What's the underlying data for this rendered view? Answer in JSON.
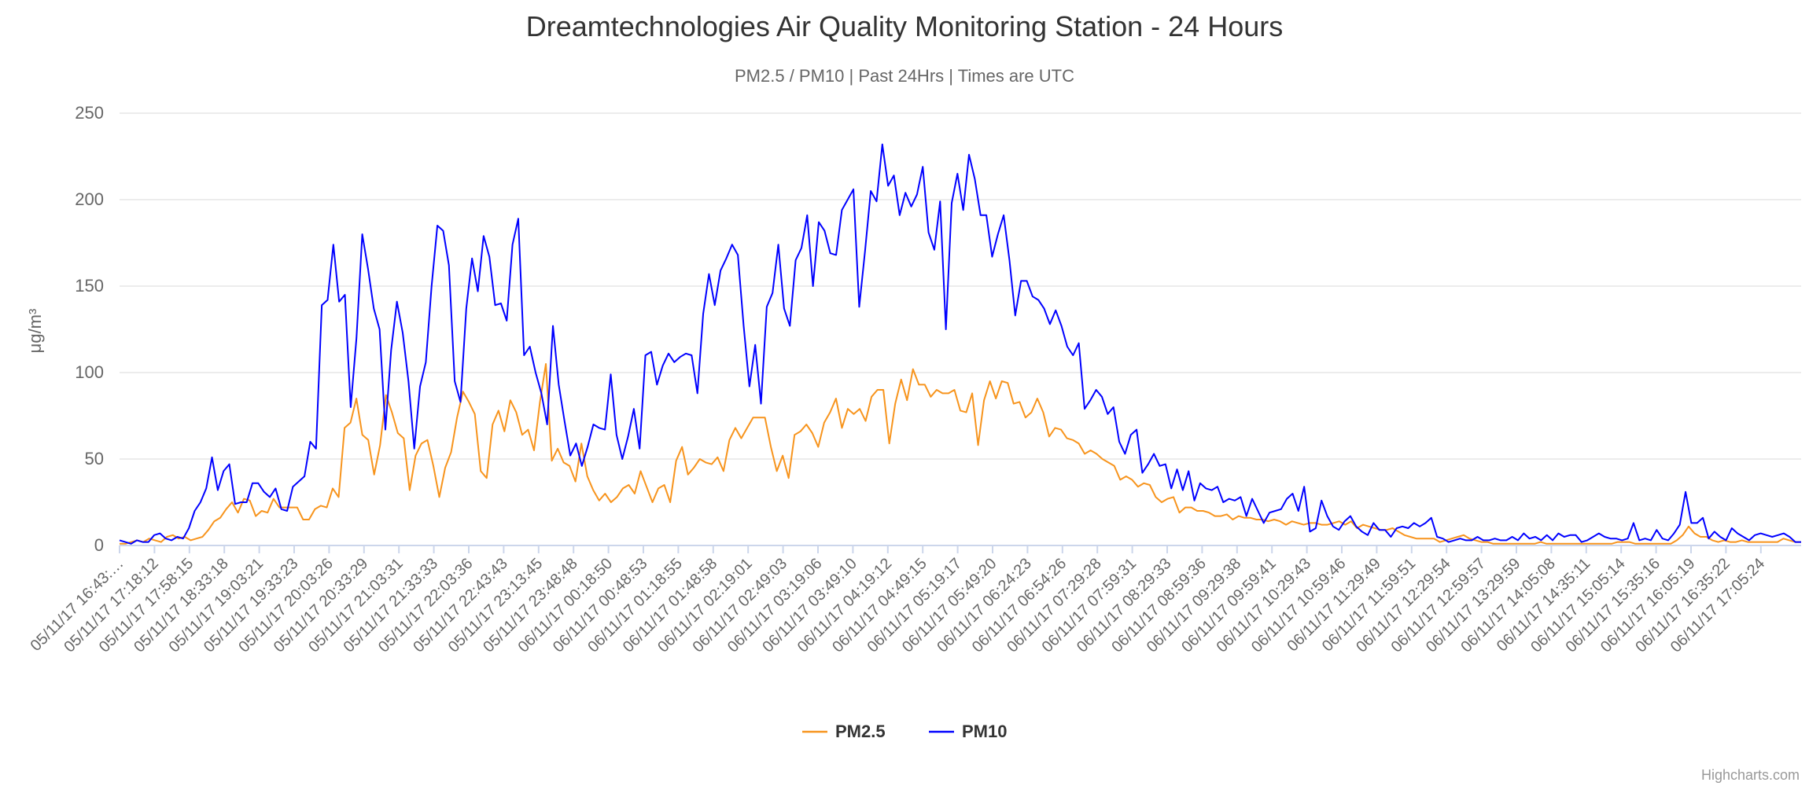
{
  "chart_data": {
    "type": "line",
    "title": "Dreamtechnologies Air Quality Monitoring Station - 24 Hours",
    "subtitle": "PM2.5 / PM10 | Past 24Hrs | Times are UTC",
    "ylabel": "μg/m³",
    "xlabel": "",
    "ylim": [
      0,
      250
    ],
    "yticks": [
      0,
      50,
      100,
      150,
      200,
      250
    ],
    "xtick_labels": [
      "05/11/17 16:43:…",
      "05/11/17 17:18:12",
      "05/11/17 17:58:15",
      "05/11/17 18:33:18",
      "05/11/17 19:03:21",
      "05/11/17 19:33:23",
      "05/11/17 20:03:26",
      "05/11/17 20:33:29",
      "05/11/17 21:03:31",
      "05/11/17 21:33:33",
      "05/11/17 22:03:36",
      "05/11/17 22:43:43",
      "05/11/17 23:13:45",
      "05/11/17 23:48:48",
      "06/11/17 00:18:50",
      "06/11/17 00:48:53",
      "06/11/17 01:18:55",
      "06/11/17 01:48:58",
      "06/11/17 02:19:01",
      "06/11/17 02:49:03",
      "06/11/17 03:19:06",
      "06/11/17 03:49:10",
      "06/11/17 04:19:12",
      "06/11/17 04:49:15",
      "06/11/17 05:19:17",
      "06/11/17 05:49:20",
      "06/11/17 06:24:23",
      "06/11/17 06:54:26",
      "06/11/17 07:29:28",
      "06/11/17 07:59:31",
      "06/11/17 08:29:33",
      "06/11/17 08:59:36",
      "06/11/17 09:29:38",
      "06/11/17 09:59:41",
      "06/11/17 10:29:43",
      "06/11/17 10:59:46",
      "06/11/17 11:29:49",
      "06/11/17 11:59:51",
      "06/11/17 12:29:54",
      "06/11/17 12:59:57",
      "06/11/17 13:29:59",
      "06/11/17 14:05:08",
      "06/11/17 14:35:11",
      "06/11/17 15:05:14",
      "06/11/17 15:35:16",
      "06/11/17 16:05:19",
      "06/11/17 16:35:22",
      "06/11/17 17:05:24"
    ],
    "legend_position": "bottom-center",
    "grid": true,
    "series": [
      {
        "name": "PM2.5",
        "color": "#f7941d",
        "values": [
          1,
          1,
          2,
          3,
          2,
          4,
          3,
          2,
          5,
          6,
          4,
          5,
          3,
          4,
          5,
          9,
          14,
          16,
          21,
          25,
          19,
          27,
          26,
          17,
          20,
          19,
          27,
          22,
          22,
          22,
          22,
          15,
          15,
          21,
          23,
          22,
          33,
          28,
          68,
          71,
          85,
          64,
          61,
          41,
          58,
          87,
          77,
          65,
          62,
          32,
          52,
          59,
          61,
          46,
          28,
          45,
          54,
          74,
          89,
          83,
          76,
          43,
          39,
          70,
          78,
          66,
          84,
          77,
          64,
          67,
          55,
          83,
          105,
          49,
          56,
          48,
          46,
          37,
          59,
          40,
          32,
          26,
          30,
          25,
          28,
          33,
          35,
          30,
          43,
          34,
          25,
          33,
          35,
          25,
          49,
          57,
          41,
          45,
          50,
          48,
          47,
          51,
          43,
          61,
          68,
          62,
          68,
          74,
          74,
          74,
          57,
          43,
          52,
          39,
          64,
          66,
          70,
          65,
          57,
          71,
          77,
          85,
          68,
          79,
          76,
          79,
          72,
          86,
          90,
          90,
          59,
          82,
          96,
          84,
          102,
          93,
          93,
          86,
          90,
          88,
          88,
          90,
          78,
          77,
          88,
          58,
          84,
          95,
          85,
          95,
          94,
          82,
          83,
          74,
          77,
          85,
          77,
          63,
          68,
          67,
          62,
          61,
          59,
          53,
          55,
          53,
          50,
          48,
          46,
          38,
          40,
          38,
          34,
          36,
          35,
          28,
          25,
          27,
          28,
          19,
          22,
          22,
          20,
          20,
          19,
          17,
          17,
          18,
          15,
          17,
          16,
          16,
          15,
          15,
          14,
          15,
          14,
          12,
          14,
          13,
          12,
          13,
          13,
          12,
          12,
          13,
          14,
          12,
          14,
          10,
          12,
          11,
          10,
          9,
          9,
          10,
          8,
          6,
          5,
          4,
          4,
          4,
          4,
          2,
          3,
          4,
          5,
          6,
          4,
          3,
          2,
          2,
          1,
          1,
          1,
          1,
          1,
          1,
          1,
          1,
          2,
          1,
          1,
          1,
          1,
          1,
          1,
          1,
          1,
          1,
          1,
          1,
          1,
          2,
          2,
          2,
          1,
          1,
          1,
          1,
          1,
          1,
          1,
          3,
          6,
          11,
          7,
          5,
          5,
          3,
          2,
          3,
          2,
          2,
          3,
          2,
          2,
          2,
          2,
          2,
          2,
          4,
          3,
          2,
          2
        ]
      },
      {
        "name": "PM10",
        "color": "#0000ff",
        "values": [
          3,
          2,
          1,
          3,
          2,
          2,
          6,
          7,
          4,
          3,
          5,
          4,
          10,
          20,
          25,
          33,
          51,
          32,
          43,
          47,
          24,
          25,
          25,
          36,
          36,
          31,
          28,
          33,
          21,
          20,
          34,
          37,
          40,
          60,
          56,
          139,
          142,
          174,
          141,
          145,
          80,
          120,
          180,
          160,
          137,
          125,
          67,
          113,
          141,
          123,
          95,
          56,
          92,
          106,
          150,
          185,
          182,
          162,
          95,
          83,
          137,
          166,
          147,
          179,
          167,
          139,
          140,
          130,
          174,
          189,
          110,
          115,
          100,
          88,
          70,
          127,
          93,
          72,
          52,
          59,
          46,
          57,
          70,
          68,
          67,
          99,
          64,
          50,
          63,
          79,
          56,
          110,
          112,
          93,
          104,
          111,
          106,
          109,
          111,
          110,
          88,
          134,
          157,
          139,
          159,
          166,
          174,
          168,
          127,
          92,
          116,
          82,
          138,
          146,
          174,
          137,
          127,
          165,
          172,
          191,
          150,
          187,
          182,
          169,
          168,
          194,
          200,
          206,
          138,
          170,
          205,
          199,
          232,
          208,
          214,
          191,
          204,
          196,
          203,
          219,
          181,
          171,
          199,
          125,
          198,
          215,
          194,
          226,
          212,
          191,
          191,
          167,
          180,
          191,
          165,
          133,
          153,
          153,
          144,
          142,
          137,
          128,
          136,
          127,
          115,
          110,
          117,
          79,
          84,
          90,
          86,
          76,
          80,
          60,
          53,
          64,
          67,
          42,
          47,
          53,
          46,
          47,
          33,
          44,
          32,
          43,
          26,
          36,
          33,
          32,
          34,
          25,
          27,
          26,
          28,
          17,
          27,
          20,
          13,
          19,
          20,
          21,
          27,
          30,
          20,
          34,
          8,
          10,
          26,
          17,
          11,
          9,
          14,
          17,
          11,
          8,
          6,
          13,
          9,
          9,
          5,
          10,
          11,
          10,
          13,
          11,
          13,
          16,
          5,
          4,
          2,
          3,
          4,
          3,
          3,
          5,
          3,
          3,
          4,
          3,
          3,
          5,
          3,
          7,
          4,
          5,
          3,
          6,
          3,
          7,
          5,
          6,
          6,
          2,
          3,
          5,
          7,
          5,
          4,
          4,
          3,
          4,
          13,
          3,
          4,
          3,
          9,
          4,
          3,
          7,
          12,
          31,
          13,
          13,
          16,
          4,
          8,
          5,
          3,
          10,
          7,
          5,
          3,
          6,
          7,
          6,
          5,
          6,
          7,
          5,
          2,
          2
        ]
      }
    ],
    "credits": "Highcharts.com"
  }
}
